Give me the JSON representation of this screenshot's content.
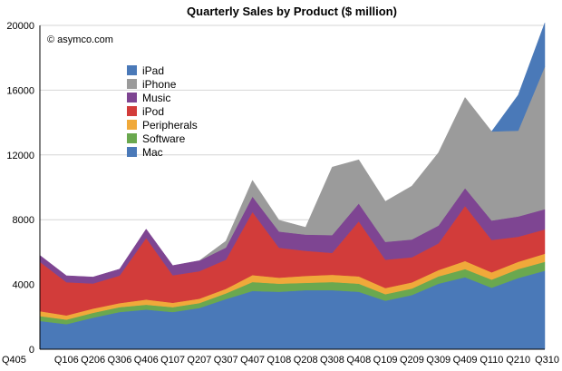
{
  "chart_data": {
    "type": "area",
    "stacked": true,
    "title": "Quarterly Sales by Product ($ million)",
    "copyright": "© asymco.com",
    "xlabel": "",
    "ylabel": "",
    "ylim": [
      0,
      20000
    ],
    "yticks": [
      0,
      4000,
      8000,
      12000,
      16000,
      20000
    ],
    "grid": true,
    "legend_position": "upper-left",
    "categories": [
      "Q405",
      "Q106",
      "Q206",
      "Q306",
      "Q406",
      "Q107",
      "Q207",
      "Q307",
      "Q407",
      "Q108",
      "Q208",
      "Q308",
      "Q408",
      "Q109",
      "Q209",
      "Q309",
      "Q409",
      "Q110",
      "Q210",
      "Q310"
    ],
    "series": [
      {
        "name": "Mac",
        "color": "#4a79b8",
        "values": [
          1750,
          1550,
          1950,
          2300,
          2450,
          2300,
          2550,
          3100,
          3600,
          3550,
          3650,
          3650,
          3550,
          3000,
          3350,
          4050,
          4450,
          3800,
          4400,
          4850
        ]
      },
      {
        "name": "Software",
        "color": "#6aa84f",
        "values": [
          300,
          280,
          300,
          300,
          300,
          300,
          300,
          350,
          550,
          500,
          450,
          500,
          500,
          400,
          400,
          450,
          500,
          500,
          550,
          550
        ]
      },
      {
        "name": "Peripherals",
        "color": "#f0a93a",
        "values": [
          300,
          260,
          260,
          250,
          320,
          270,
          270,
          280,
          430,
          370,
          430,
          450,
          450,
          380,
          380,
          390,
          500,
          450,
          450,
          500
        ]
      },
      {
        "name": "iPod",
        "color": "#d23c3a",
        "values": [
          3050,
          2050,
          1550,
          1700,
          3800,
          1700,
          1700,
          1800,
          3900,
          1850,
          1550,
          1350,
          3400,
          1750,
          1550,
          1650,
          3400,
          2000,
          1550,
          1500
        ]
      },
      {
        "name": "Music",
        "color": "#7e4592",
        "values": [
          400,
          400,
          400,
          400,
          550,
          600,
          650,
          750,
          950,
          1000,
          1000,
          1100,
          1100,
          1100,
          1100,
          1100,
          1100,
          1200,
          1250,
          1250
        ]
      },
      {
        "name": "iPhone",
        "color": "#9b9b9b",
        "values": [
          0,
          0,
          0,
          0,
          0,
          0,
          0,
          400,
          1000,
          700,
          450,
          4200,
          2700,
          2500,
          3300,
          4500,
          5600,
          5500,
          5300,
          8800
        ]
      },
      {
        "name": "iPad",
        "color": "#4a79b8",
        "values": [
          0,
          0,
          0,
          0,
          0,
          0,
          0,
          0,
          0,
          0,
          0,
          0,
          0,
          0,
          0,
          0,
          0,
          0,
          2200,
          2700
        ]
      }
    ],
    "legend_order": [
      "iPad",
      "iPhone",
      "Music",
      "iPod",
      "Peripherals",
      "Software",
      "Mac"
    ]
  }
}
